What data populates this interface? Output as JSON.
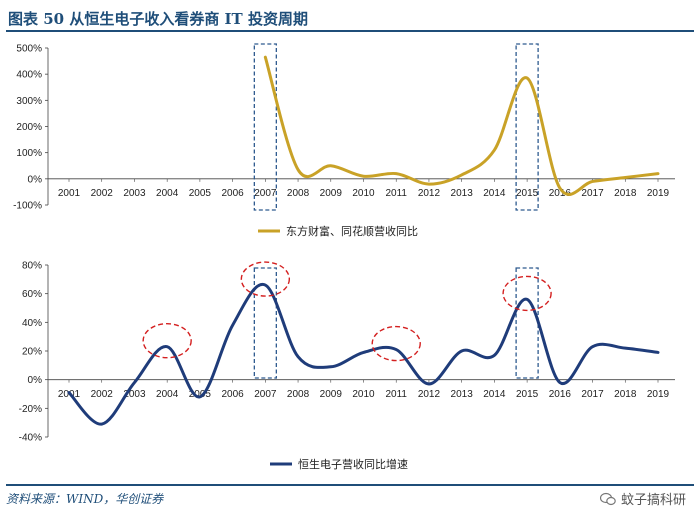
{
  "figure": {
    "title": "图表 50   从恒生电子收入看券商 IT 投资周期",
    "source": "资料来源：WIND，华创证券",
    "watermark": "蚊子搞科研"
  },
  "chart_data": [
    {
      "type": "line",
      "title": "",
      "categories": [
        "2001",
        "2002",
        "2003",
        "2004",
        "2005",
        "2006",
        "2007",
        "2008",
        "2009",
        "2010",
        "2011",
        "2012",
        "2013",
        "2014",
        "2015",
        "2016",
        "2017",
        "2018",
        "2019"
      ],
      "series": [
        {
          "name": "东方财富、同花顺营收同比",
          "color": "#c9a227",
          "values": [
            null,
            null,
            null,
            null,
            null,
            null,
            465,
            35,
            50,
            10,
            20,
            -20,
            15,
            110,
            385,
            -35,
            -10,
            5,
            20
          ]
        }
      ],
      "ylim": [
        -100,
        500
      ],
      "yticks": [
        -100,
        0,
        100,
        200,
        300,
        400,
        500
      ],
      "ytick_labels": [
        "-100%",
        "0%",
        "100%",
        "200%",
        "300%",
        "400%",
        "500%"
      ],
      "highlight_boxes": [
        "2007",
        "2015"
      ],
      "legend": "bottom-center"
    },
    {
      "type": "line",
      "title": "",
      "categories": [
        "2001",
        "2002",
        "2003",
        "2004",
        "2005",
        "2006",
        "2007",
        "2008",
        "2009",
        "2010",
        "2011",
        "2012",
        "2013",
        "2014",
        "2015",
        "2016",
        "2017",
        "2018",
        "2019"
      ],
      "series": [
        {
          "name": "恒生电子营收同比增速",
          "color": "#1f3c7a",
          "values": [
            -9,
            -31,
            -2,
            23,
            -12,
            38,
            66,
            16,
            9,
            19,
            21,
            -3,
            20,
            17,
            56,
            -2,
            23,
            22,
            19
          ]
        }
      ],
      "ylim": [
        -40,
        80
      ],
      "yticks": [
        -40,
        -20,
        0,
        20,
        40,
        60,
        80
      ],
      "ytick_labels": [
        "-40%",
        "-20%",
        "0%",
        "20%",
        "40%",
        "60%",
        "80%"
      ],
      "highlight_boxes": [
        "2007",
        "2015"
      ],
      "highlight_circles": [
        "2004",
        "2007",
        "2011",
        "2015"
      ],
      "legend": "bottom-center"
    }
  ]
}
